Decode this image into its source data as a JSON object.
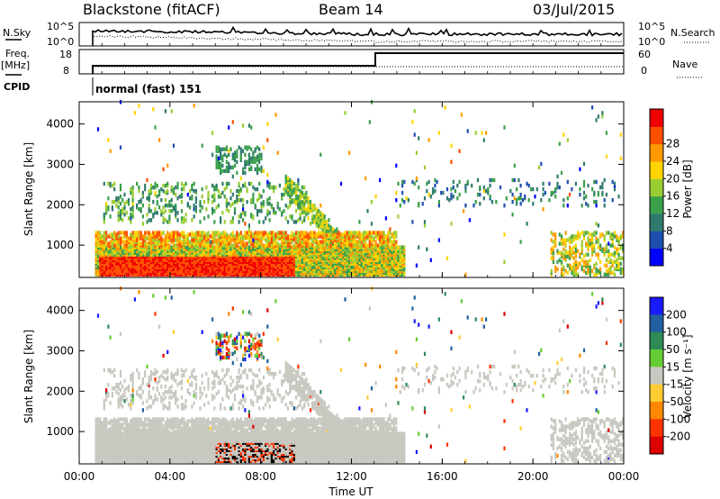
{
  "header": {
    "station": "Blackstone (fitACF)",
    "beam": "Beam 14",
    "date": "03/Jul/2015"
  },
  "left_labels": {
    "nsky": "N.Sky",
    "freq": "Freq.",
    "freq_unit": "[MHz]",
    "cpid": "CPID"
  },
  "right_labels": {
    "nsearch": "N.Search",
    "nave": "Nave"
  },
  "cpid_text": "normal (fast) 151",
  "noise_panel": {
    "ytick_top": "10^5",
    "ytick_bottom": "10^0",
    "rtick_top": "10^5",
    "rtick_bottom": "10^0"
  },
  "freq_panel": {
    "lticks": [
      "18",
      "8"
    ],
    "rticks": [
      "60",
      "0"
    ]
  },
  "chart_data": [
    {
      "type": "heatmap",
      "name": "Power",
      "ylabel": "Slant Range [km]",
      "ylim": [
        200,
        4550
      ],
      "yticks": [
        "1000",
        "2000",
        "3000",
        "4000"
      ],
      "xlim": [
        0,
        24
      ],
      "colorbar": {
        "label": "Power [dB]",
        "ticks": [
          "4",
          "8",
          "12",
          "16",
          "20",
          "24",
          "28"
        ],
        "colors": [
          "#0000ff",
          "#1e4fb0",
          "#2f7a6e",
          "#3aa04a",
          "#9acd32",
          "#ffd400",
          "#ff9900",
          "#ff5000",
          "#ee0000"
        ]
      }
    },
    {
      "type": "heatmap",
      "name": "Velocity",
      "ylabel": "Slant Range [km]",
      "ylim": [
        200,
        4550
      ],
      "yticks": [
        "1000",
        "2000",
        "3000",
        "4000"
      ],
      "xlim": [
        0,
        24
      ],
      "colorbar": {
        "label": "Velocity [m s⁻¹]",
        "ticks": [
          "200",
          "100",
          "50",
          "15",
          "-15",
          "-50",
          "-100",
          "-200"
        ],
        "colors": [
          "#1a1aff",
          "#2060a0",
          "#2e8b57",
          "#66cc33",
          "#c8c8c0",
          "#ffcc33",
          "#ff8800",
          "#ff3300",
          "#dd0000"
        ]
      }
    }
  ],
  "xaxis": {
    "label": "Time UT",
    "ticks": [
      "00:00",
      "04:00",
      "08:00",
      "12:00",
      "16:00",
      "20:00",
      "00:00"
    ]
  }
}
